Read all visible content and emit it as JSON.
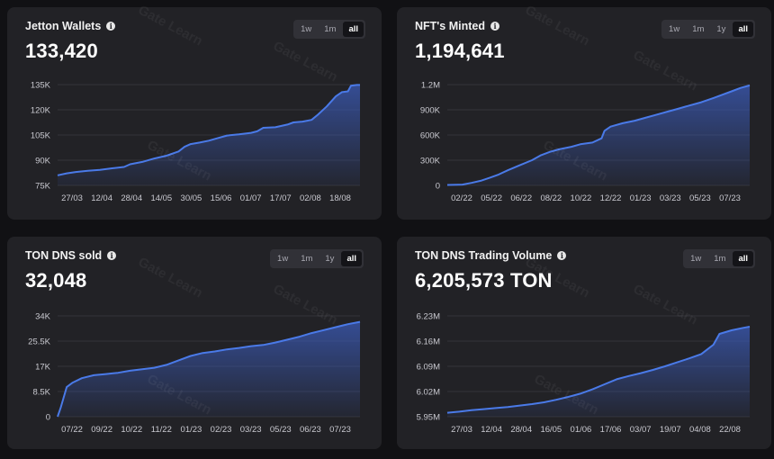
{
  "theme": {
    "line_color": "#4a7ae8",
    "fill_color": "#3b5bb8"
  },
  "range_options": [
    "1w",
    "1m",
    "1y",
    "all"
  ],
  "active_range": "all",
  "info_icon": "info-icon",
  "watermark_text": "Gate Learn",
  "cards": [
    {
      "title": "Jetton Wallets",
      "value": "133,420",
      "range_tabs": [
        "1w",
        "1m",
        "all"
      ]
    },
    {
      "title": "NFT's Minted",
      "value": "1,194,641",
      "range_tabs": [
        "1w",
        "1m",
        "1y",
        "all"
      ]
    },
    {
      "title": "TON DNS sold",
      "value": "32,048",
      "range_tabs": [
        "1w",
        "1m",
        "1y",
        "all"
      ]
    },
    {
      "title": "TON DNS Trading Volume",
      "value": "6,205,573 TON",
      "range_tabs": [
        "1w",
        "1m",
        "all"
      ]
    }
  ],
  "chart_data": [
    {
      "type": "area",
      "x_ticks": [
        "27/03",
        "12/04",
        "28/04",
        "14/05",
        "30/05",
        "15/06",
        "01/07",
        "17/07",
        "02/08",
        "18/08"
      ],
      "y_ticks": [
        "75K",
        "90K",
        "105K",
        "120K",
        "135K"
      ],
      "y_tick_values": [
        75000,
        90000,
        105000,
        120000,
        135000
      ],
      "ylim": [
        75000,
        135000
      ],
      "x_range": [
        0,
        100
      ],
      "points": [
        [
          0,
          81000
        ],
        [
          3,
          82200
        ],
        [
          6,
          83000
        ],
        [
          10,
          83700
        ],
        [
          14,
          84200
        ],
        [
          18,
          85200
        ],
        [
          22,
          86000
        ],
        [
          24,
          87600
        ],
        [
          28,
          89000
        ],
        [
          32,
          91000
        ],
        [
          36,
          92700
        ],
        [
          40,
          95200
        ],
        [
          42,
          98000
        ],
        [
          44,
          99600
        ],
        [
          47,
          100500
        ],
        [
          50,
          101600
        ],
        [
          53,
          103200
        ],
        [
          56,
          104700
        ],
        [
          60,
          105400
        ],
        [
          64,
          106300
        ],
        [
          66,
          107200
        ],
        [
          68,
          109300
        ],
        [
          72,
          109600
        ],
        [
          76,
          111200
        ],
        [
          78,
          112500
        ],
        [
          81,
          113000
        ],
        [
          84,
          114000
        ],
        [
          86,
          117000
        ],
        [
          89,
          122000
        ],
        [
          92,
          128000
        ],
        [
          94,
          130500
        ],
        [
          96,
          131000
        ],
        [
          97,
          134300
        ],
        [
          99,
          134800
        ],
        [
          100,
          134800
        ]
      ]
    },
    {
      "type": "area",
      "x_ticks": [
        "02/22",
        "05/22",
        "06/22",
        "08/22",
        "10/22",
        "12/22",
        "01/23",
        "03/23",
        "05/23",
        "07/23"
      ],
      "y_ticks": [
        "0",
        "300K",
        "600K",
        "900K",
        "1.2M"
      ],
      "y_tick_values": [
        0,
        300000,
        600000,
        900000,
        1200000
      ],
      "ylim": [
        0,
        1200000
      ],
      "x_range": [
        0,
        100
      ],
      "points": [
        [
          0,
          5000
        ],
        [
          5,
          10000
        ],
        [
          8,
          30000
        ],
        [
          11,
          55000
        ],
        [
          14,
          90000
        ],
        [
          17,
          130000
        ],
        [
          20,
          180000
        ],
        [
          24,
          240000
        ],
        [
          28,
          300000
        ],
        [
          31,
          360000
        ],
        [
          34,
          400000
        ],
        [
          37,
          430000
        ],
        [
          41,
          460000
        ],
        [
          44,
          490000
        ],
        [
          48,
          510000
        ],
        [
          51,
          560000
        ],
        [
          52,
          650000
        ],
        [
          54,
          700000
        ],
        [
          58,
          740000
        ],
        [
          62,
          770000
        ],
        [
          66,
          810000
        ],
        [
          70,
          850000
        ],
        [
          73,
          880000
        ],
        [
          76,
          910000
        ],
        [
          80,
          950000
        ],
        [
          84,
          990000
        ],
        [
          88,
          1040000
        ],
        [
          91,
          1080000
        ],
        [
          94,
          1120000
        ],
        [
          97,
          1160000
        ],
        [
          100,
          1190000
        ]
      ]
    },
    {
      "type": "area",
      "x_ticks": [
        "07/22",
        "09/22",
        "10/22",
        "11/22",
        "01/23",
        "02/23",
        "03/23",
        "05/23",
        "06/23",
        "07/23"
      ],
      "y_ticks": [
        "0",
        "8.5K",
        "17K",
        "25.5K",
        "34K"
      ],
      "y_tick_values": [
        0,
        8500,
        17000,
        25500,
        34000
      ],
      "ylim": [
        0,
        34000
      ],
      "x_range": [
        0,
        100
      ],
      "points": [
        [
          0,
          0
        ],
        [
          1,
          3000
        ],
        [
          3,
          10000
        ],
        [
          5,
          11500
        ],
        [
          8,
          13000
        ],
        [
          12,
          14000
        ],
        [
          16,
          14400
        ],
        [
          20,
          14800
        ],
        [
          24,
          15500
        ],
        [
          28,
          16000
        ],
        [
          32,
          16500
        ],
        [
          36,
          17500
        ],
        [
          40,
          19000
        ],
        [
          44,
          20500
        ],
        [
          48,
          21500
        ],
        [
          52,
          22000
        ],
        [
          56,
          22700
        ],
        [
          60,
          23200
        ],
        [
          64,
          23800
        ],
        [
          68,
          24200
        ],
        [
          72,
          25000
        ],
        [
          76,
          26000
        ],
        [
          80,
          27000
        ],
        [
          84,
          28200
        ],
        [
          88,
          29200
        ],
        [
          92,
          30200
        ],
        [
          96,
          31200
        ],
        [
          100,
          32000
        ]
      ]
    },
    {
      "type": "area",
      "x_ticks": [
        "27/03",
        "12/04",
        "28/04",
        "16/05",
        "01/06",
        "17/06",
        "03/07",
        "19/07",
        "04/08",
        "22/08"
      ],
      "y_ticks": [
        "5.95M",
        "6.02M",
        "6.09M",
        "6.16M",
        "6.23M"
      ],
      "y_tick_values": [
        5950000,
        6020000,
        6090000,
        6160000,
        6230000
      ],
      "ylim": [
        5950000,
        6230000
      ],
      "x_range": [
        0,
        100
      ],
      "points": [
        [
          0,
          5961000
        ],
        [
          4,
          5964000
        ],
        [
          8,
          5968000
        ],
        [
          12,
          5971000
        ],
        [
          16,
          5974000
        ],
        [
          20,
          5977000
        ],
        [
          24,
          5981000
        ],
        [
          28,
          5985000
        ],
        [
          32,
          5990000
        ],
        [
          36,
          5997000
        ],
        [
          40,
          6005000
        ],
        [
          44,
          6014000
        ],
        [
          48,
          6026000
        ],
        [
          52,
          6040000
        ],
        [
          56,
          6054000
        ],
        [
          60,
          6063000
        ],
        [
          64,
          6071000
        ],
        [
          68,
          6080000
        ],
        [
          72,
          6090000
        ],
        [
          76,
          6101000
        ],
        [
          80,
          6112000
        ],
        [
          84,
          6124000
        ],
        [
          86,
          6137000
        ],
        [
          88,
          6150000
        ],
        [
          90,
          6180000
        ],
        [
          94,
          6190000
        ],
        [
          98,
          6197000
        ],
        [
          100,
          6200000
        ]
      ]
    }
  ]
}
